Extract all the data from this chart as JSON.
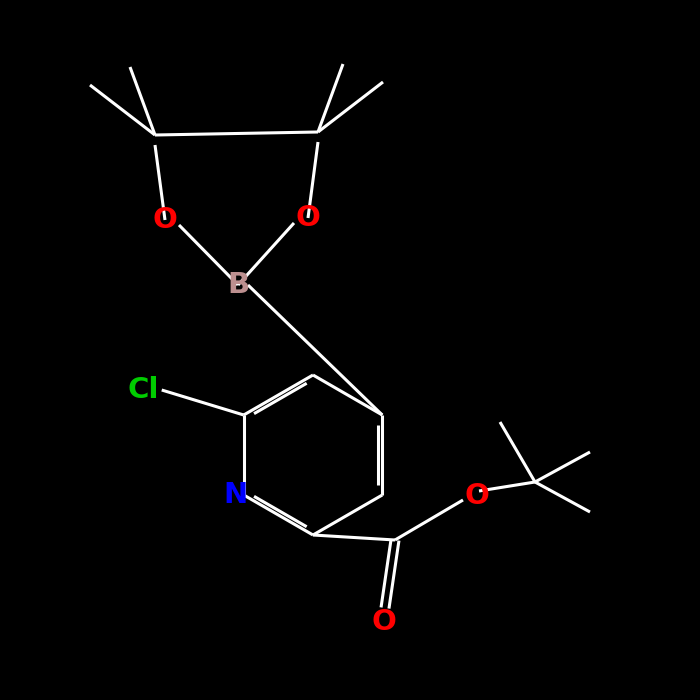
{
  "bg_color": "#000000",
  "bond_color": "#ffffff",
  "atom_colors": {
    "O": "#ff0000",
    "B": "#bc8f8f",
    "N": "#0000ff",
    "Cl": "#00cc00",
    "C": "#ffffff"
  },
  "lw": 2.2
}
